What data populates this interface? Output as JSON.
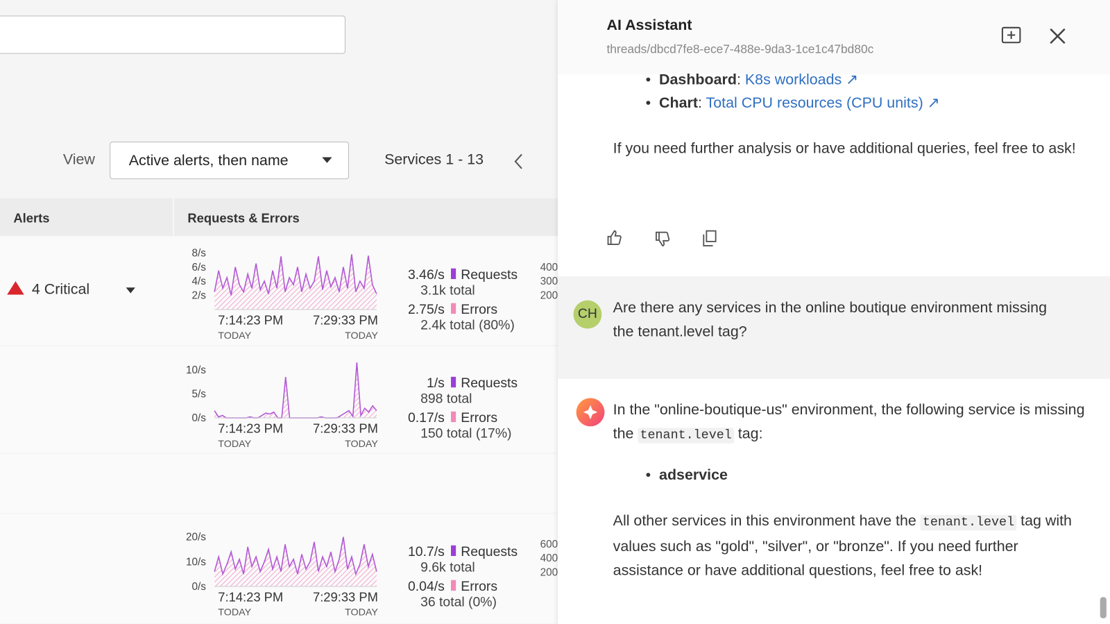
{
  "left": {
    "view_label": "View",
    "view_select": "Active alerts, then name",
    "pager": "Services 1 - 13",
    "columns": [
      "Alerts",
      "Requests & Errors"
    ],
    "rows": [
      {
        "alert": "4 Critical",
        "spark": {
          "ylim": [
            0,
            8.7
          ],
          "yticks": [
            {
              "value": 2,
              "label": "2/s"
            },
            {
              "value": 4,
              "label": "4/s"
            },
            {
              "value": 6,
              "label": "6/s"
            },
            {
              "value": 8,
              "label": "8/s"
            }
          ],
          "values": [
            2.5,
            5.5,
            3,
            4.5,
            2,
            6,
            3.5,
            2.5,
            5,
            3,
            6.5,
            2.8,
            4,
            2.2,
            5.5,
            3,
            7.5,
            2.5,
            4.5,
            3.5,
            6,
            2.5,
            5,
            3,
            4,
            7.5,
            2.8,
            5.5,
            3.2,
            4.5,
            2.5,
            6,
            3,
            7.8,
            2.5,
            4,
            3,
            7.6,
            3.5,
            2.2
          ]
        },
        "times": [
          "7:14:23 PM",
          "7:29:33 PM"
        ],
        "days": [
          "TODAY",
          "TODAY"
        ],
        "requests": {
          "rate": "3.46/s",
          "label": "Requests",
          "total": "3.1k total"
        },
        "errors": {
          "rate": "2.75/s",
          "label": "Errors",
          "total": "2.4k total (80%)"
        },
        "cut_ticks": [
          "400",
          "300",
          "200"
        ]
      },
      {
        "spark": {
          "ylim": [
            0,
            12.8
          ],
          "yticks": [
            {
              "value": 0,
              "label": "0/s"
            },
            {
              "value": 5,
              "label": "5/s"
            },
            {
              "value": 10,
              "label": "10/s"
            }
          ],
          "values": [
            1.5,
            0.2,
            0.5,
            0,
            0,
            0,
            0,
            0,
            0,
            0.2,
            0,
            0,
            0.5,
            1,
            0.8,
            1.2,
            0,
            0,
            8.5,
            0,
            0,
            0,
            0,
            0,
            0,
            0,
            0,
            0.2,
            0,
            0,
            0,
            0,
            0.5,
            1,
            1.5,
            0.3,
            11.5,
            0.5,
            2,
            1.2,
            2.5,
            1.5
          ]
        },
        "times": [
          "7:14:23 PM",
          "7:29:33 PM"
        ],
        "days": [
          "TODAY",
          "TODAY"
        ],
        "requests": {
          "rate": "1/s",
          "label": "Requests",
          "total": "898 total"
        },
        "errors": {
          "rate": "0.17/s",
          "label": "Errors",
          "total": "150 total (17%)"
        }
      },
      {
        "spark": {
          "ylim": [
            0,
            24.9
          ],
          "yticks": [
            {
              "value": 0,
              "label": "0/s"
            },
            {
              "value": 10,
              "label": "10/s"
            },
            {
              "value": 20,
              "label": "20/s"
            }
          ],
          "values": [
            6,
            12,
            5,
            9,
            14,
            7,
            11,
            5,
            16,
            8,
            12,
            6,
            10,
            15,
            7,
            12,
            6,
            17,
            8,
            11,
            5,
            13,
            7,
            10,
            18,
            6,
            12,
            8,
            14,
            6,
            11,
            20,
            7,
            12,
            5,
            9,
            17,
            8,
            13,
            6
          ]
        },
        "times": [
          "7:14:23 PM",
          "7:29:33 PM"
        ],
        "days": [
          "TODAY",
          "TODAY"
        ],
        "requests": {
          "rate": "10.7/s",
          "label": "Requests",
          "total": "9.6k total"
        },
        "errors": {
          "rate": "0.04/s",
          "label": "Errors",
          "total": "36 total (0%)"
        },
        "cut_ticks": [
          "600",
          "400",
          "200"
        ]
      }
    ]
  },
  "assistant": {
    "title": "AI Assistant",
    "thread": "threads/dbcd7fe8-ece7-488e-9da3-1ce1c47bd80c",
    "links": [
      {
        "label": "Dashboard",
        "sep": ":",
        "text": "K8s workloads"
      },
      {
        "label": "Chart",
        "sep": ":",
        "text": "Total CPU resources (CPU units)"
      }
    ],
    "closing": "If you need further analysis or have additional queries, feel free to ask!",
    "user": {
      "initials": "CH",
      "text": "Are there any services in the online boutique environment missing the tenant.level tag?"
    },
    "answer": {
      "intro": "In the \"online-boutique-us\" environment, the following service is missing the",
      "code": "tenant.level",
      "intro_end": "tag:",
      "item": "adservice",
      "p2_start": "All other services in this environment have the",
      "p2_end": "tag with values such as \"gold\", \"silver\", or \"bronze\". If you need further assistance or have additional questions, feel free to ask!"
    }
  }
}
